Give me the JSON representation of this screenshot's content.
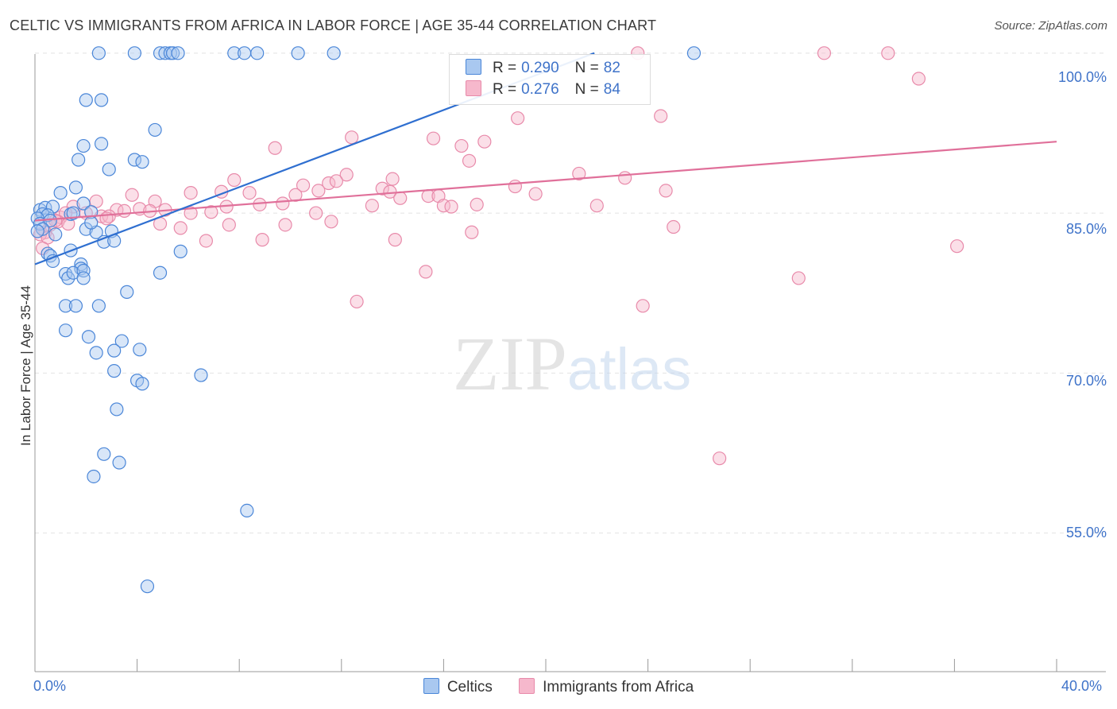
{
  "title": "CELTIC VS IMMIGRANTS FROM AFRICA IN LABOR FORCE | AGE 35-44 CORRELATION CHART",
  "source": "Source: ZipAtlas.com",
  "watermark": "ZIPatlas",
  "legend": {
    "rows": [
      {
        "r_label": "R =",
        "r_value": "0.290",
        "n_label": "N =",
        "n_value": "82"
      },
      {
        "r_label": "R =",
        "r_value": "0.276",
        "n_label": "N =",
        "n_value": "84"
      }
    ]
  },
  "bottom_legend": [
    "Celtics",
    "Immigrants from Africa"
  ],
  "colors": {
    "celtics_fill": "#a9c8f0",
    "celtics_stroke": "#4a86d8",
    "celtics_line": "#2f6fd0",
    "africa_fill": "#f6b8cc",
    "africa_stroke": "#e88aaa",
    "africa_line": "#e0709a",
    "tick_text": "#3f73c9",
    "grid": "#e2e2e2"
  },
  "chart_data": {
    "type": "scatter",
    "title": "CELTIC VS IMMIGRANTS FROM AFRICA IN LABOR FORCE | AGE 35-44 CORRELATION CHART",
    "xlabel": "",
    "ylabel": "In Labor Force | Age 35-44",
    "x_tick_labels": [
      "0.0%",
      "40.0%"
    ],
    "y_tick_labels": [
      "100.0%",
      "85.0%",
      "70.0%",
      "55.0%"
    ],
    "xlim": [
      0,
      40
    ],
    "ylim": [
      42,
      102
    ],
    "grid": true,
    "legend_placement": "top-center",
    "series": [
      {
        "name": "Celtics",
        "r": 0.29,
        "n": 82,
        "trend": {
          "x": [
            0.0,
            21.9
          ],
          "y": [
            80.2,
            100.0
          ]
        },
        "points": [
          [
            2.5,
            100.0
          ],
          [
            3.9,
            100.0
          ],
          [
            4.9,
            100.0
          ],
          [
            5.1,
            100.0
          ],
          [
            5.3,
            100.0
          ],
          [
            5.4,
            100.0
          ],
          [
            5.6,
            100.0
          ],
          [
            7.8,
            100.0
          ],
          [
            8.2,
            100.0
          ],
          [
            8.7,
            100.0
          ],
          [
            10.3,
            100.0
          ],
          [
            11.7,
            100.0
          ],
          [
            25.8,
            100.0
          ],
          [
            2.0,
            95.6
          ],
          [
            2.6,
            95.6
          ],
          [
            4.7,
            92.8
          ],
          [
            1.9,
            91.3
          ],
          [
            2.6,
            91.5
          ],
          [
            1.7,
            90.0
          ],
          [
            3.9,
            90.0
          ],
          [
            4.2,
            89.8
          ],
          [
            2.9,
            89.1
          ],
          [
            1.6,
            87.4
          ],
          [
            1.0,
            86.9
          ],
          [
            1.9,
            85.9
          ],
          [
            0.2,
            85.3
          ],
          [
            0.4,
            85.5
          ],
          [
            0.7,
            85.6
          ],
          [
            0.3,
            84.9
          ],
          [
            0.5,
            84.8
          ],
          [
            0.1,
            84.5
          ],
          [
            0.2,
            84.0
          ],
          [
            0.6,
            84.3
          ],
          [
            0.3,
            83.5
          ],
          [
            0.1,
            83.3
          ],
          [
            1.4,
            84.9
          ],
          [
            2.2,
            85.1
          ],
          [
            1.5,
            85.0
          ],
          [
            0.8,
            83.0
          ],
          [
            2.0,
            83.5
          ],
          [
            2.4,
            83.2
          ],
          [
            3.0,
            83.3
          ],
          [
            2.2,
            84.1
          ],
          [
            2.7,
            82.3
          ],
          [
            3.1,
            82.4
          ],
          [
            0.5,
            81.2
          ],
          [
            1.4,
            81.5
          ],
          [
            0.6,
            81.0
          ],
          [
            0.7,
            80.5
          ],
          [
            5.7,
            81.4
          ],
          [
            1.8,
            80.2
          ],
          [
            1.8,
            79.8
          ],
          [
            1.2,
            79.3
          ],
          [
            1.3,
            78.9
          ],
          [
            1.5,
            79.4
          ],
          [
            1.9,
            79.6
          ],
          [
            1.9,
            78.9
          ],
          [
            4.9,
            79.4
          ],
          [
            3.6,
            77.6
          ],
          [
            1.2,
            76.3
          ],
          [
            1.6,
            76.3
          ],
          [
            2.5,
            76.3
          ],
          [
            1.2,
            74.0
          ],
          [
            2.1,
            73.4
          ],
          [
            3.4,
            73.0
          ],
          [
            2.4,
            71.9
          ],
          [
            3.1,
            72.1
          ],
          [
            4.1,
            72.2
          ],
          [
            3.1,
            70.2
          ],
          [
            4.0,
            69.3
          ],
          [
            4.2,
            69.0
          ],
          [
            6.5,
            69.8
          ],
          [
            3.2,
            66.6
          ],
          [
            2.7,
            62.4
          ],
          [
            3.3,
            61.6
          ],
          [
            2.3,
            60.3
          ],
          [
            8.3,
            57.1
          ],
          [
            4.4,
            50.0
          ]
        ]
      },
      {
        "name": "Immigrants from Africa",
        "r": 0.276,
        "n": 84,
        "trend": {
          "x": [
            0.0,
            40.0
          ],
          "y": [
            84.3,
            91.7
          ]
        },
        "points": [
          [
            23.6,
            100.0
          ],
          [
            30.9,
            100.0
          ],
          [
            33.4,
            100.0
          ],
          [
            34.6,
            97.6
          ],
          [
            18.9,
            93.9
          ],
          [
            24.5,
            94.1
          ],
          [
            12.4,
            92.1
          ],
          [
            15.6,
            92.0
          ],
          [
            16.7,
            91.3
          ],
          [
            17.6,
            91.7
          ],
          [
            9.4,
            91.1
          ],
          [
            17.0,
            89.9
          ],
          [
            12.2,
            88.6
          ],
          [
            14.0,
            88.2
          ],
          [
            21.3,
            88.7
          ],
          [
            23.1,
            88.3
          ],
          [
            7.8,
            88.1
          ],
          [
            10.5,
            87.6
          ],
          [
            11.5,
            87.8
          ],
          [
            11.8,
            88.0
          ],
          [
            13.6,
            87.3
          ],
          [
            13.9,
            87.0
          ],
          [
            18.8,
            87.5
          ],
          [
            7.3,
            87.0
          ],
          [
            8.4,
            86.9
          ],
          [
            10.2,
            86.7
          ],
          [
            11.1,
            87.1
          ],
          [
            14.3,
            86.4
          ],
          [
            15.4,
            86.6
          ],
          [
            15.8,
            86.6
          ],
          [
            19.6,
            86.8
          ],
          [
            24.7,
            87.1
          ],
          [
            3.8,
            86.7
          ],
          [
            4.7,
            86.1
          ],
          [
            6.1,
            86.9
          ],
          [
            2.4,
            86.1
          ],
          [
            1.5,
            85.6
          ],
          [
            3.2,
            85.3
          ],
          [
            3.5,
            85.2
          ],
          [
            4.1,
            85.4
          ],
          [
            4.5,
            85.2
          ],
          [
            5.1,
            85.3
          ],
          [
            6.1,
            85.0
          ],
          [
            6.9,
            85.1
          ],
          [
            7.5,
            85.6
          ],
          [
            8.8,
            85.8
          ],
          [
            9.7,
            85.9
          ],
          [
            11.0,
            85.0
          ],
          [
            13.2,
            85.7
          ],
          [
            16.0,
            85.7
          ],
          [
            16.3,
            85.6
          ],
          [
            17.3,
            85.8
          ],
          [
            22.0,
            85.7
          ],
          [
            2.0,
            85.0
          ],
          [
            2.6,
            84.7
          ],
          [
            2.9,
            84.7
          ],
          [
            1.0,
            84.6
          ],
          [
            1.2,
            85.0
          ],
          [
            0.9,
            84.2
          ],
          [
            0.6,
            83.9
          ],
          [
            0.8,
            84.3
          ],
          [
            0.4,
            83.2
          ],
          [
            0.2,
            83.0
          ],
          [
            0.5,
            82.7
          ],
          [
            0.3,
            81.7
          ],
          [
            1.3,
            84.0
          ],
          [
            2.8,
            84.5
          ],
          [
            4.9,
            84.0
          ],
          [
            5.7,
            83.6
          ],
          [
            7.6,
            83.9
          ],
          [
            9.8,
            83.9
          ],
          [
            11.6,
            84.2
          ],
          [
            17.1,
            83.2
          ],
          [
            25.0,
            83.7
          ],
          [
            6.7,
            82.4
          ],
          [
            8.9,
            82.5
          ],
          [
            14.1,
            82.5
          ],
          [
            36.1,
            81.9
          ],
          [
            15.3,
            79.5
          ],
          [
            29.9,
            78.9
          ],
          [
            12.6,
            76.7
          ],
          [
            23.8,
            76.3
          ],
          [
            26.8,
            62.0
          ]
        ]
      }
    ]
  }
}
